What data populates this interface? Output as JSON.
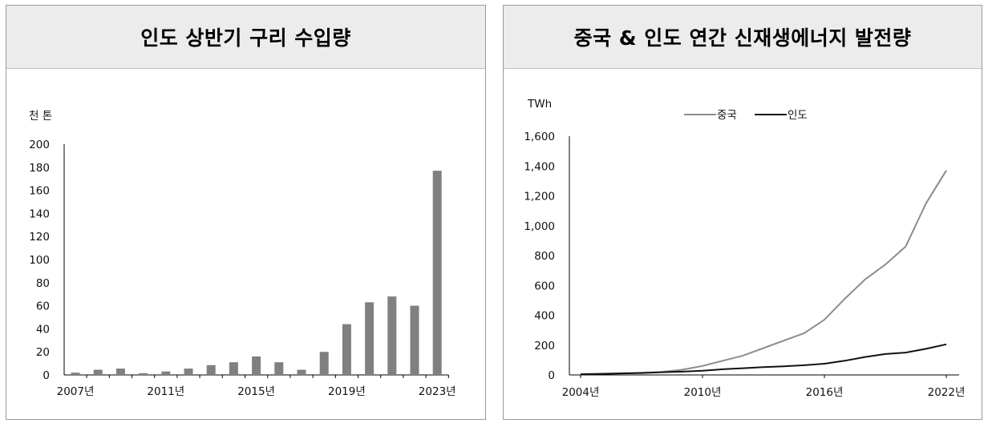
{
  "chart_data": [
    {
      "type": "bar",
      "title": "인도 상반기 구리 수입량",
      "ylabel": "천 톤",
      "ylim": [
        0,
        200
      ],
      "yticks": [
        0,
        20,
        40,
        60,
        80,
        100,
        120,
        140,
        160,
        180,
        200
      ],
      "xtick_labels": [
        "2007년",
        "2011년",
        "2015년",
        "2019년",
        "2023년"
      ],
      "categories": [
        "2007",
        "2008",
        "2009",
        "2010",
        "2011",
        "2012",
        "2013",
        "2014",
        "2015",
        "2016",
        "2017",
        "2018",
        "2019",
        "2020",
        "2021",
        "2022",
        "2023"
      ],
      "values": [
        2,
        4.5,
        5.5,
        1.5,
        3,
        5.5,
        8.5,
        11,
        16,
        11,
        4.5,
        20,
        44,
        63,
        68,
        60,
        177
      ],
      "bar_color": "#808080"
    },
    {
      "type": "line",
      "title": "중국 & 인도 연간 신재생에너지 발전량",
      "ylabel": "TWh",
      "ylim": [
        0,
        1600
      ],
      "yticks": [
        "0",
        "200",
        "400",
        "600",
        "800",
        "1,000",
        "1,200",
        "1,400",
        "1,600"
      ],
      "xtick_labels": [
        "2004년",
        "2010년",
        "2016년",
        "2022년"
      ],
      "legend_position": "top",
      "x": [
        2004,
        2005,
        2006,
        2007,
        2008,
        2009,
        2010,
        2011,
        2012,
        2013,
        2014,
        2015,
        2016,
        2017,
        2018,
        2019,
        2020,
        2021,
        2022
      ],
      "series": [
        {
          "name": "중국",
          "color": "#8c8c8c",
          "values": [
            5,
            8,
            11,
            15,
            20,
            35,
            60,
            95,
            130,
            180,
            230,
            280,
            370,
            510,
            640,
            740,
            860,
            1150,
            1370
          ]
        },
        {
          "name": "인도",
          "color": "#111111",
          "values": [
            5,
            7,
            10,
            13,
            18,
            22,
            28,
            38,
            45,
            52,
            58,
            65,
            75,
            95,
            120,
            140,
            150,
            175,
            205
          ]
        }
      ]
    }
  ]
}
